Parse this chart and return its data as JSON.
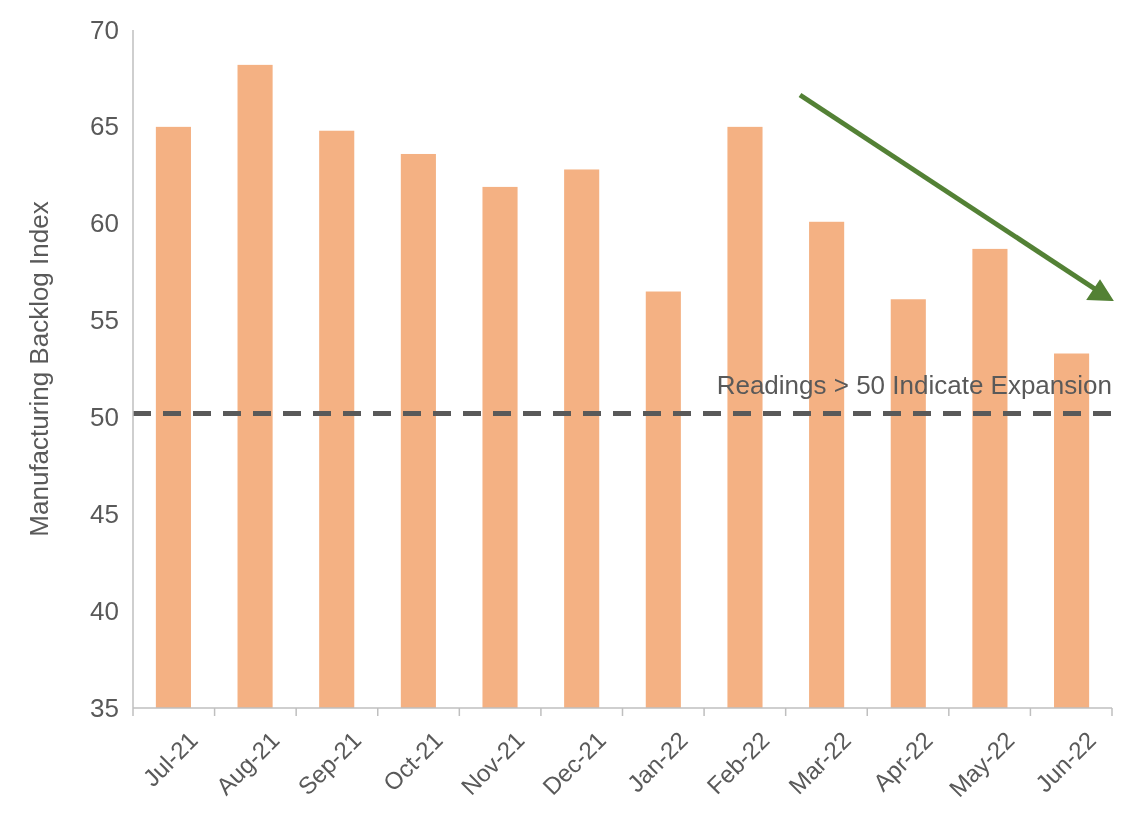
{
  "chart_data": {
    "type": "bar",
    "ylabel": "Manufacturing Backlog Index",
    "categories": [
      "Jul-21",
      "Aug-21",
      "Sep-21",
      "Oct-21",
      "Nov-21",
      "Dec-21",
      "Jan-22",
      "Feb-22",
      "Mar-22",
      "Apr-22",
      "May-22",
      "Jun-22"
    ],
    "values": [
      65.0,
      68.2,
      64.8,
      63.6,
      61.9,
      62.8,
      56.5,
      65.0,
      60.1,
      56.1,
      58.7,
      53.3
    ],
    "color": "#f4b183",
    "ylim": [
      35,
      70
    ],
    "yticks": [
      35,
      40,
      45,
      50,
      55,
      60,
      65,
      70
    ],
    "grid": false,
    "ref_lines": [
      {
        "axis": "y",
        "value": 50.2,
        "label": "Readings > 50 Indicate Expansion",
        "color": "#595959",
        "line_style": "dashed"
      }
    ]
  }
}
